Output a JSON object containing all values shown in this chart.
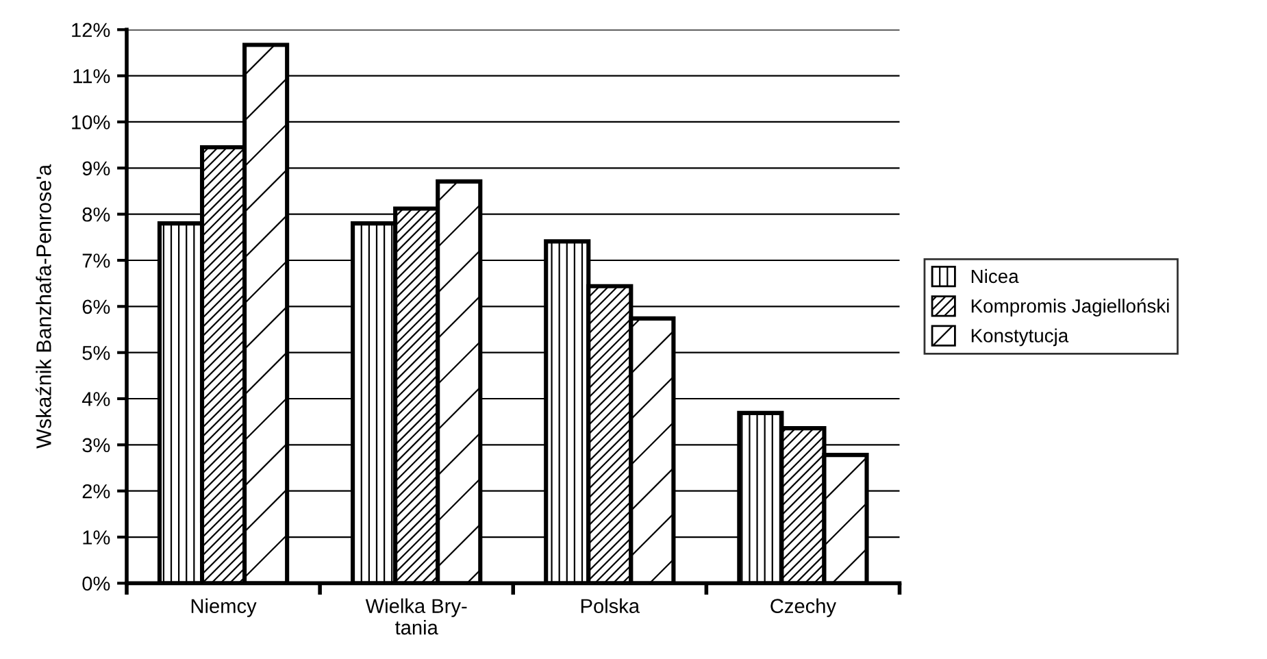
{
  "chart_data": {
    "type": "bar",
    "ylabel": "Wskaźnik Banzhafa-Penrose'a",
    "categories": [
      "Niemcy",
      "Wielka Bry-\ntania",
      "Polska",
      "Czechy"
    ],
    "series": [
      {
        "name": "Nicea",
        "color": "#000000",
        "values": [
          7.8,
          7.8,
          7.41,
          3.69
        ]
      },
      {
        "name": "Kompromis Jagielloński",
        "color": "#000000",
        "values": [
          9.45,
          8.12,
          6.44,
          3.36
        ]
      },
      {
        "name": "Konstytucja",
        "color": "#000000",
        "values": [
          11.67,
          8.71,
          5.74,
          2.78
        ]
      }
    ],
    "ylim": [
      0,
      12
    ],
    "yticks": [
      {
        "value": 0,
        "label": "0%"
      },
      {
        "value": 1,
        "label": "1%"
      },
      {
        "value": 2,
        "label": "2%"
      },
      {
        "value": 3,
        "label": "3%"
      },
      {
        "value": 4,
        "label": "4%"
      },
      {
        "value": 5,
        "label": "5%"
      },
      {
        "value": 6,
        "label": "6%"
      },
      {
        "value": 7,
        "label": "7%"
      },
      {
        "value": 8,
        "label": "8%"
      },
      {
        "value": 9,
        "label": "9%"
      },
      {
        "value": 10,
        "label": "10%"
      },
      {
        "value": 11,
        "label": "11%"
      },
      {
        "value": 12,
        "label": "12%"
      }
    ],
    "grid": "y",
    "legend": "right"
  }
}
